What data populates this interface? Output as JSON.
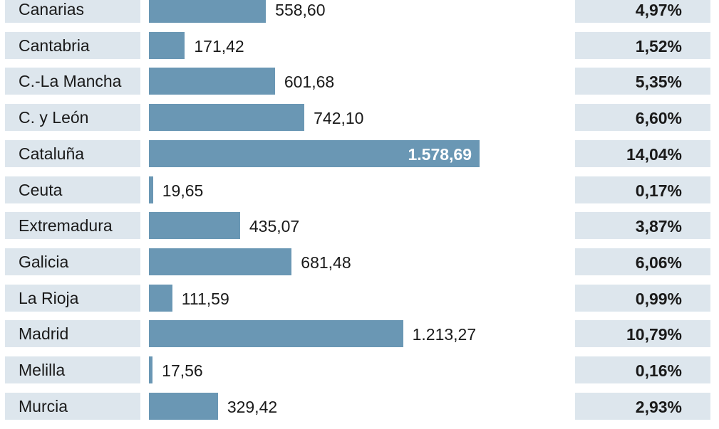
{
  "chart_data": {
    "type": "bar",
    "orientation": "horizontal",
    "title": "",
    "xlabel": "",
    "ylabel": "",
    "grid": false,
    "xlim": [
      0,
      1578.69
    ],
    "categories": [
      "Canarias",
      "Cantabria",
      "C.-La Mancha",
      "C. y León",
      "Cataluña",
      "Ceuta",
      "Extremadura",
      "Galicia",
      "La Rioja",
      "Madrid",
      "Melilla",
      "Murcia"
    ],
    "values": [
      558.6,
      171.42,
      601.68,
      742.1,
      1578.69,
      19.65,
      435.07,
      681.48,
      111.59,
      1213.27,
      17.56,
      329.42
    ],
    "value_labels": [
      "558,60",
      "171,42",
      "601,68",
      "742,10",
      "1.578,69",
      "19,65",
      "435,07",
      "681,48",
      "111,59",
      "1.213,27",
      "17,56",
      "329,42"
    ],
    "percentages": [
      "4,97%",
      "1,52%",
      "5,35%",
      "6,60%",
      "14,04%",
      "0,17%",
      "3,87%",
      "6,06%",
      "0,99%",
      "10,79%",
      "0,16%",
      "2,93%"
    ],
    "highlight_index": 4,
    "colors": {
      "bar": "#6a97b4",
      "cell_background": "#dde6ed",
      "text": "#1a1a1a",
      "inside_label": "#ffffff"
    }
  }
}
